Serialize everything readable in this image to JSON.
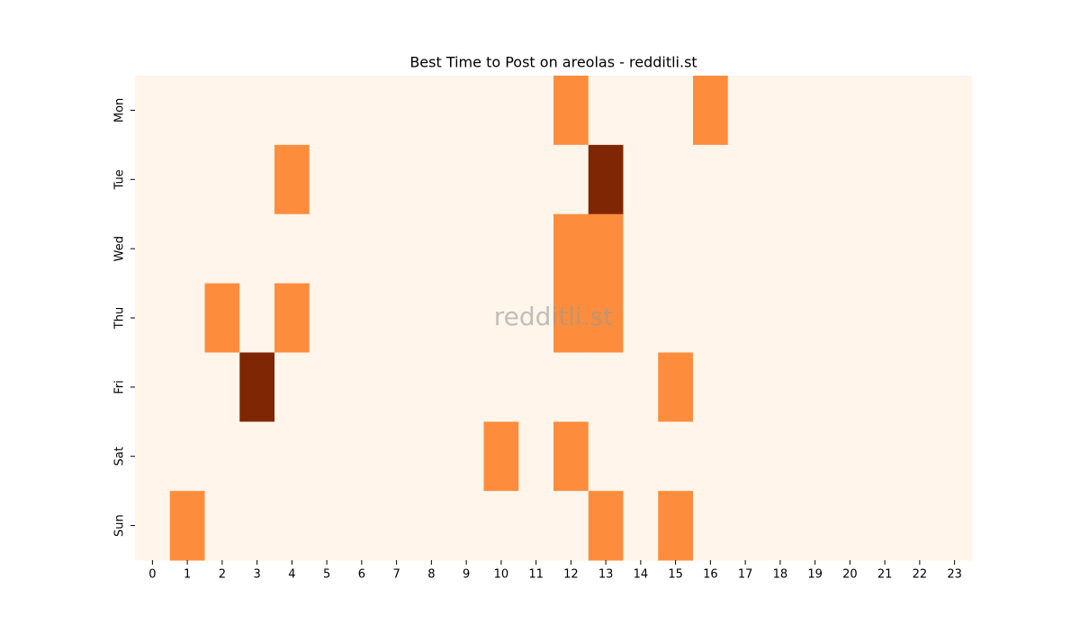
{
  "chart_data": {
    "type": "heatmap",
    "title": "Best Time to Post on areolas - redditli.st",
    "watermark": "redditli.st",
    "x": [
      0,
      1,
      2,
      3,
      4,
      5,
      6,
      7,
      8,
      9,
      10,
      11,
      12,
      13,
      14,
      15,
      16,
      17,
      18,
      19,
      20,
      21,
      22,
      23
    ],
    "y": [
      "Mon",
      "Tue",
      "Wed",
      "Thu",
      "Fri",
      "Sat",
      "Sun"
    ],
    "values": [
      [
        0,
        0,
        0,
        0,
        0,
        0,
        0,
        0,
        0,
        0,
        0,
        0,
        1,
        0,
        0,
        0,
        1,
        0,
        0,
        0,
        0,
        0,
        0,
        0
      ],
      [
        0,
        0,
        0,
        0,
        1,
        0,
        0,
        0,
        0,
        0,
        0,
        0,
        0,
        2,
        0,
        0,
        0,
        0,
        0,
        0,
        0,
        0,
        0,
        0
      ],
      [
        0,
        0,
        0,
        0,
        0,
        0,
        0,
        0,
        0,
        0,
        0,
        0,
        1,
        1,
        0,
        0,
        0,
        0,
        0,
        0,
        0,
        0,
        0,
        0
      ],
      [
        0,
        0,
        1,
        0,
        1,
        0,
        0,
        0,
        0,
        0,
        0,
        0,
        1,
        1,
        0,
        0,
        0,
        0,
        0,
        0,
        0,
        0,
        0,
        0
      ],
      [
        0,
        0,
        0,
        2,
        0,
        0,
        0,
        0,
        0,
        0,
        0,
        0,
        0,
        0,
        0,
        1,
        0,
        0,
        0,
        0,
        0,
        0,
        0,
        0
      ],
      [
        0,
        0,
        0,
        0,
        0,
        0,
        0,
        0,
        0,
        0,
        1,
        0,
        1,
        0,
        0,
        0,
        0,
        0,
        0,
        0,
        0,
        0,
        0,
        0
      ],
      [
        0,
        1,
        0,
        0,
        0,
        0,
        0,
        0,
        0,
        0,
        0,
        0,
        0,
        1,
        0,
        1,
        0,
        0,
        0,
        0,
        0,
        0,
        0,
        0
      ]
    ],
    "zlim": [
      0,
      2
    ],
    "colormap": [
      "#fff5eb",
      "#fd8d3c",
      "#7f2704"
    ]
  }
}
